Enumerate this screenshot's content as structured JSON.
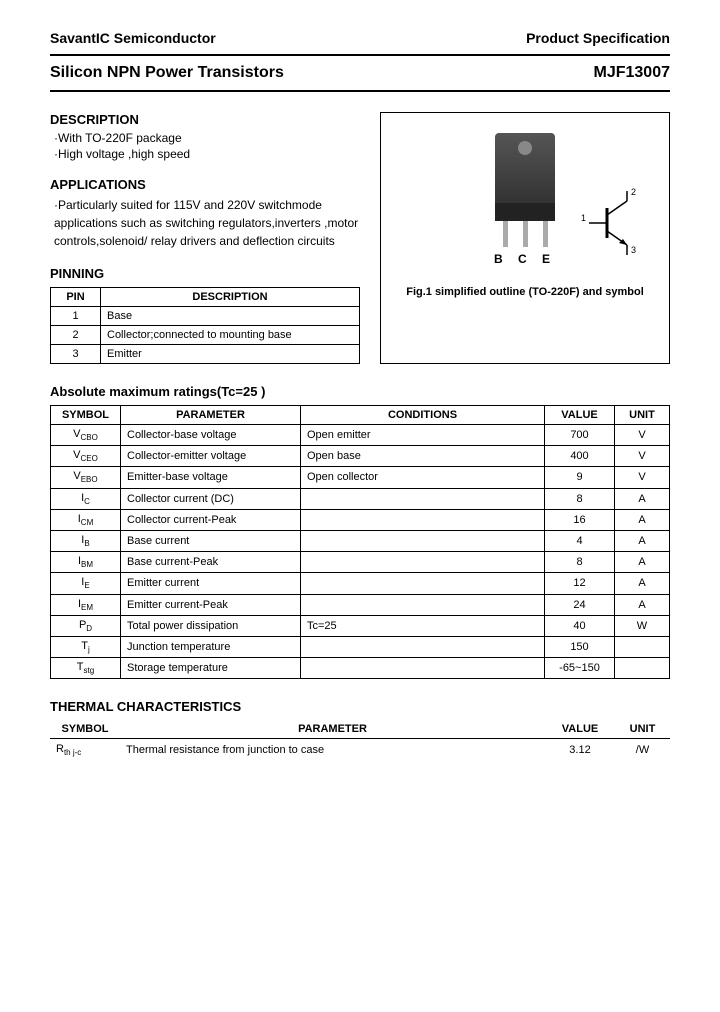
{
  "header": {
    "company": "SavantIC Semiconductor",
    "doc_type": "Product Specification"
  },
  "title": {
    "product_family": "Silicon NPN Power Transistors",
    "part_number": "MJF13007"
  },
  "description": {
    "heading": "DESCRIPTION",
    "items": [
      "·With TO-220F package",
      "·High voltage ,high speed"
    ]
  },
  "applications": {
    "heading": "APPLICATIONS",
    "text": "·Particularly suited for 115V and 220V switchmode applications such as switching regulators,inverters ,motor controls,solenoid/ relay drivers and deflection circuits"
  },
  "pinning": {
    "heading": "PINNING",
    "columns": [
      "PIN",
      "DESCRIPTION"
    ],
    "rows": [
      [
        "1",
        "Base"
      ],
      [
        "2",
        "Collector;connected to mounting base"
      ],
      [
        "3",
        "Emitter"
      ]
    ]
  },
  "figure": {
    "pin_labels": "B C E",
    "caption": "Fig.1 simplified outline (TO-220F) and symbol",
    "symbol_labels": {
      "base": "1",
      "collector": "2",
      "emitter": "3"
    }
  },
  "ratings": {
    "heading": "Absolute maximum ratings(Tc=25 )",
    "columns": [
      "SYMBOL",
      "PARAMETER",
      "CONDITIONS",
      "VALUE",
      "UNIT"
    ],
    "rows": [
      {
        "sym": "V",
        "sub": "CBO",
        "param": "Collector-base voltage",
        "cond": "Open emitter",
        "val": "700",
        "unit": "V"
      },
      {
        "sym": "V",
        "sub": "CEO",
        "param": "Collector-emitter voltage",
        "cond": "Open base",
        "val": "400",
        "unit": "V"
      },
      {
        "sym": "V",
        "sub": "EBO",
        "param": "Emitter-base voltage",
        "cond": "Open collector",
        "val": "9",
        "unit": "V"
      },
      {
        "sym": "I",
        "sub": "C",
        "param": "Collector current (DC)",
        "cond": "",
        "val": "8",
        "unit": "A"
      },
      {
        "sym": "I",
        "sub": "CM",
        "param": "Collector current-Peak",
        "cond": "",
        "val": "16",
        "unit": "A"
      },
      {
        "sym": "I",
        "sub": "B",
        "param": "Base current",
        "cond": "",
        "val": "4",
        "unit": "A"
      },
      {
        "sym": "I",
        "sub": "BM",
        "param": "Base current-Peak",
        "cond": "",
        "val": "8",
        "unit": "A"
      },
      {
        "sym": "I",
        "sub": "E",
        "param": "Emitter current",
        "cond": "",
        "val": "12",
        "unit": "A"
      },
      {
        "sym": "I",
        "sub": "EM",
        "param": "Emitter current-Peak",
        "cond": "",
        "val": "24",
        "unit": "A"
      },
      {
        "sym": "P",
        "sub": "D",
        "param": "Total power dissipation",
        "cond": "Tc=25",
        "val": "40",
        "unit": "W"
      },
      {
        "sym": "T",
        "sub": "j",
        "param": "Junction temperature",
        "cond": "",
        "val": "150",
        "unit": ""
      },
      {
        "sym": "T",
        "sub": "stg",
        "param": "Storage temperature",
        "cond": "",
        "val": "-65~150",
        "unit": ""
      }
    ]
  },
  "thermal": {
    "heading": "THERMAL CHARACTERISTICS",
    "columns": [
      "SYMBOL",
      "PARAMETER",
      "VALUE",
      "UNIT"
    ],
    "rows": [
      {
        "sym": "R",
        "sub": "th j-c",
        "param": "Thermal resistance from junction to case",
        "val": "3.12",
        "unit": "/W"
      }
    ]
  }
}
